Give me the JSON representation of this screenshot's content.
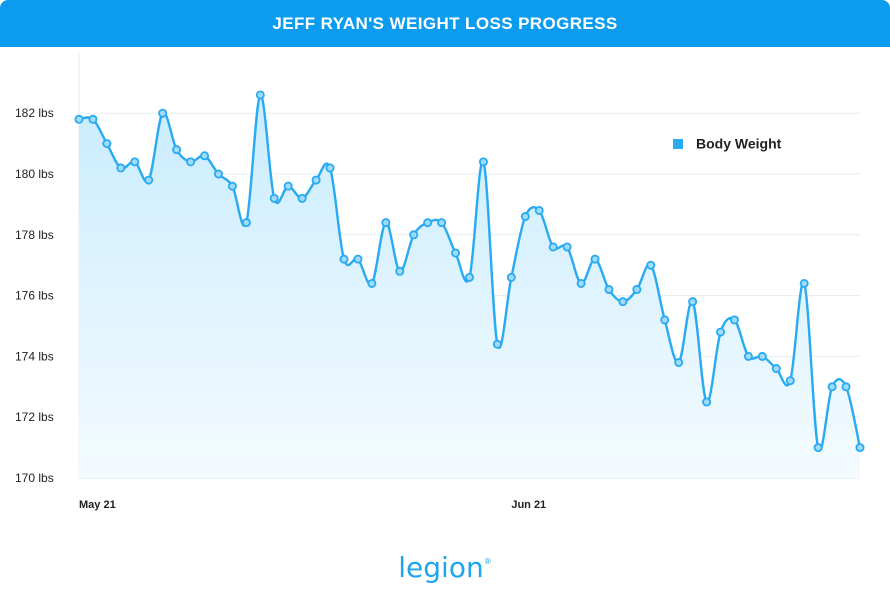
{
  "header": {
    "title": "JEFF RYAN'S WEIGHT LOSS PROGRESS"
  },
  "brand": {
    "logo_text": "legion",
    "logo_mark": "®"
  },
  "colors": {
    "header_bg": "#0b9cf0",
    "line": "#29aaf1",
    "marker_fill": "#9fdcfb",
    "area_top": "#c9ecfd",
    "area_bottom": "#f4fbff",
    "grid": "#e7edf1",
    "axis_text": "#222222"
  },
  "chart_data": {
    "type": "line",
    "title": "JEFF RYAN'S WEIGHT LOSS PROGRESS",
    "xlabel": "",
    "ylabel": "",
    "ylim": [
      170,
      184
    ],
    "yticks": [
      170,
      172,
      174,
      176,
      178,
      180,
      182
    ],
    "ytick_labels": [
      "170 lbs",
      "172 lbs",
      "174 lbs",
      "176 lbs",
      "178 lbs",
      "180 lbs",
      "182 lbs"
    ],
    "xtick_labels": [
      {
        "label": "May 21",
        "index": 0
      },
      {
        "label": "Jun 21",
        "index": 31
      }
    ],
    "grid": true,
    "legend": {
      "position": "top-right",
      "entries": [
        "Body Weight"
      ]
    },
    "series": [
      {
        "name": "Body Weight",
        "values": [
          181.8,
          181.8,
          181.0,
          180.2,
          180.4,
          179.8,
          182.0,
          180.8,
          180.4,
          180.6,
          180.0,
          179.6,
          178.4,
          182.6,
          179.2,
          179.6,
          179.2,
          179.8,
          180.2,
          177.2,
          177.2,
          176.4,
          178.4,
          176.8,
          178.0,
          178.4,
          178.4,
          177.4,
          176.6,
          180.4,
          174.4,
          176.6,
          178.6,
          178.8,
          177.6,
          177.6,
          176.4,
          177.2,
          176.2,
          175.8,
          176.2,
          177.0,
          175.2,
          173.8,
          175.8,
          172.5,
          174.8,
          175.2,
          174.0,
          174.0,
          173.6,
          173.2,
          176.4,
          171.0,
          173.0,
          173.0,
          171.0
        ]
      }
    ]
  }
}
